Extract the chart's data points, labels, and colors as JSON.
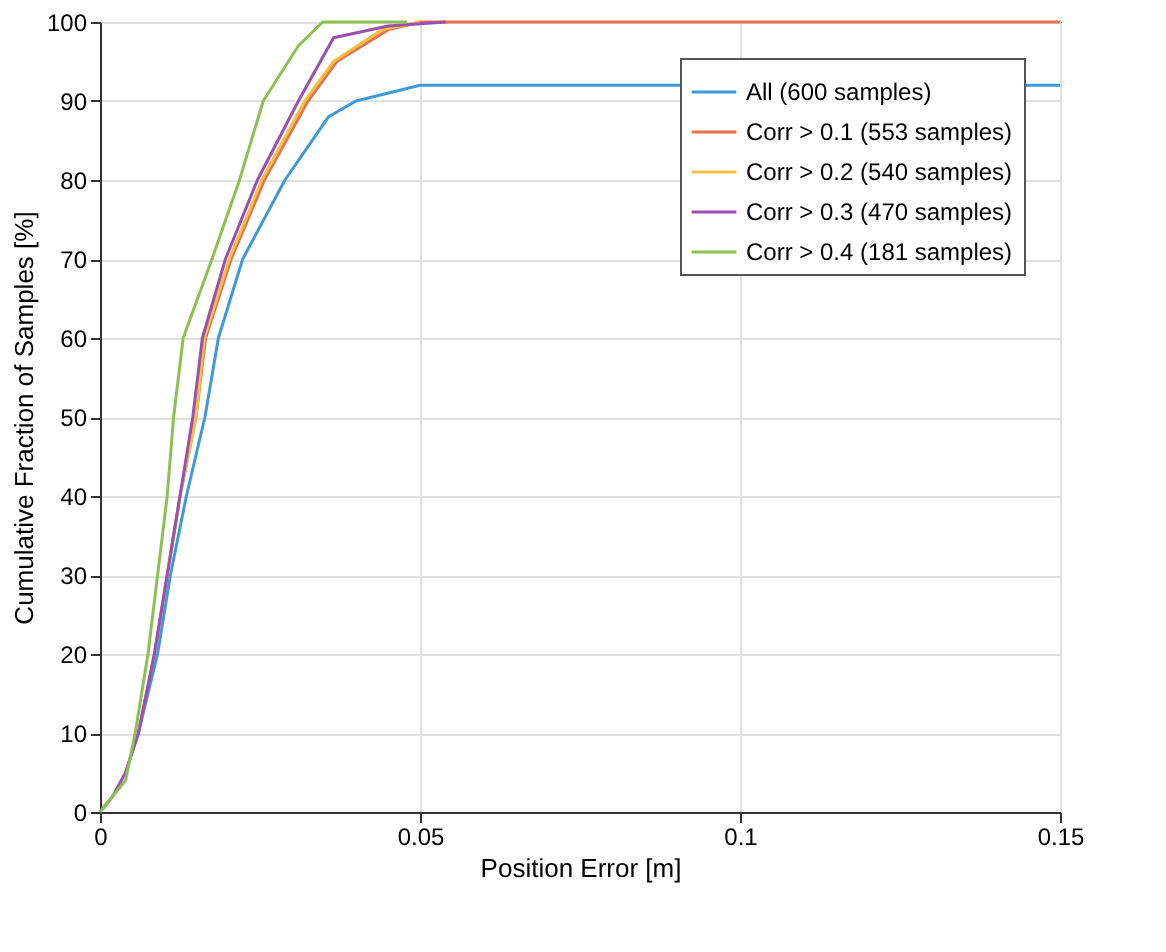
{
  "chart_data": {
    "type": "line",
    "xlabel": "Position Error [m]",
    "ylabel": "Cumulative Fraction of Samples [%]",
    "xlim": [
      0,
      0.15
    ],
    "xticks": [
      0,
      0.05,
      0.1,
      0.15
    ],
    "ylim": [
      0,
      100
    ],
    "yticks": [
      0,
      10,
      20,
      30,
      40,
      50,
      60,
      70,
      80,
      90,
      100
    ],
    "grid": true,
    "legend": "top right",
    "line_style": "solid",
    "marker": "none",
    "series": [
      {
        "name": "All (600 samples)",
        "color": "#3d9ad9",
        "x": [
          0.006,
          0.009,
          0.011,
          0.0135,
          0.0164,
          0.0185,
          0.0223,
          0.0289,
          0.0357,
          0.04,
          0.05,
          0.15
        ],
        "values": [
          10,
          20,
          30,
          40,
          50,
          60,
          70,
          80,
          88,
          90,
          92,
          92
        ]
      },
      {
        "name": "Corr > 0.1 (553 samples)",
        "color": "#e8704a",
        "x": [
          0.004,
          0.006,
          0.0085,
          0.0105,
          0.0125,
          0.015,
          0.0165,
          0.0205,
          0.0257,
          0.0325,
          0.037,
          0.045,
          0.05,
          0.15
        ],
        "values": [
          5,
          10,
          20,
          30,
          40,
          50,
          60,
          70,
          80,
          90,
          95,
          99,
          100,
          100
        ]
      },
      {
        "name": "Corr > 0.2 (540 samples)",
        "color": "#f5c040",
        "x": [
          0.0105,
          0.0125,
          0.015,
          0.0163,
          0.0202,
          0.0253,
          0.032,
          0.0365,
          0.044,
          0.05
        ],
        "values": [
          30,
          40,
          50,
          60,
          70,
          80,
          90,
          95,
          99,
          100
        ]
      },
      {
        "name": "Corr > 0.3 (470 samples)",
        "color": "#9b4fb0",
        "x": [
          0,
          0.002,
          0.004,
          0.006,
          0.0085,
          0.0105,
          0.0125,
          0.0145,
          0.016,
          0.0196,
          0.0246,
          0.031,
          0.0365,
          0.045,
          0.054
        ],
        "values": [
          0,
          2,
          5,
          10,
          20,
          30,
          40,
          50,
          60,
          70,
          80,
          90,
          98,
          99.5,
          100
        ]
      },
      {
        "name": "Corr > 0.4 (181 samples)",
        "color": "#8cc152",
        "x": [
          0,
          0.002,
          0.004,
          0.0055,
          0.0075,
          0.009,
          0.0105,
          0.0115,
          0.013,
          0.0175,
          0.0218,
          0.0255,
          0.031,
          0.0348,
          0.048
        ],
        "values": [
          0,
          2,
          4,
          10,
          20,
          30,
          40,
          50,
          60,
          70,
          80,
          90,
          97,
          100,
          100
        ]
      }
    ]
  }
}
